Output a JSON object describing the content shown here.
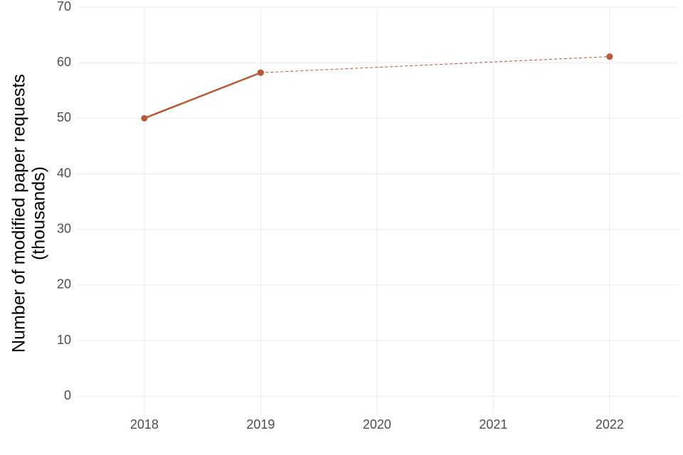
{
  "chart_data": {
    "type": "line",
    "ylabel": [
      "Number of modified paper requests",
      "(thousands)"
    ],
    "x": [
      2018,
      2019,
      2022
    ],
    "series": [
      {
        "color": "#b35a38",
        "line_style": "solid",
        "values": [
          50,
          58.2,
          null
        ]
      },
      {
        "color": "#b35a38",
        "line_style": "dashed",
        "values": [
          null,
          58.2,
          61.1
        ]
      }
    ],
    "xlim": [
      2017.42,
      2022.6
    ],
    "xticks": [
      2018,
      2019,
      2020,
      2021,
      2022
    ],
    "ylim": [
      -3.3,
      70
    ],
    "yticks": [
      0,
      10,
      20,
      30,
      40,
      50,
      60,
      70
    ],
    "grid": true
  }
}
